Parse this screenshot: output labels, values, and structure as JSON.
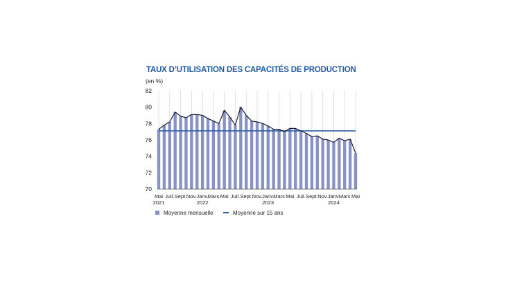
{
  "chart_data": {
    "type": "bar",
    "title": "TAUX D’UTILISATION DES CAPACITÉS DE PRODUCTION",
    "unit_label": "(en %)",
    "ylim": [
      70,
      82
    ],
    "yticks": [
      "70",
      "72",
      "74",
      "76",
      "78",
      "80",
      "82"
    ],
    "grid": "vertical",
    "x_tick_labels": [
      {
        "index": 0,
        "label": "Mai",
        "year": "2021"
      },
      {
        "index": 2,
        "label": "Juil."
      },
      {
        "index": 4,
        "label": "Sept."
      },
      {
        "index": 6,
        "label": "Nov."
      },
      {
        "index": 8,
        "label": "Janv.",
        "year": "2022"
      },
      {
        "index": 10,
        "label": "Mars"
      },
      {
        "index": 12,
        "label": "Mai"
      },
      {
        "index": 14,
        "label": "Juil."
      },
      {
        "index": 16,
        "label": "Sept."
      },
      {
        "index": 18,
        "label": "Nov."
      },
      {
        "index": 20,
        "label": "Janv.",
        "year": "2023"
      },
      {
        "index": 22,
        "label": "Mars"
      },
      {
        "index": 24,
        "label": "Mai"
      },
      {
        "index": 26,
        "label": "Juil."
      },
      {
        "index": 28,
        "label": "Sept."
      },
      {
        "index": 30,
        "label": "Nov."
      },
      {
        "index": 32,
        "label": "Janv.",
        "year": "2024"
      },
      {
        "index": 34,
        "label": "Mars"
      },
      {
        "index": 36,
        "label": "Mai"
      }
    ],
    "series": [
      {
        "name": "Moyenne mensuelle",
        "kind": "bar+line",
        "color": "#8891c8",
        "line_color": "#1a1a2e",
        "values": [
          77.3,
          77.8,
          78.2,
          79.4,
          78.9,
          78.7,
          79.1,
          79.1,
          79.0,
          78.6,
          78.3,
          78.0,
          79.6,
          78.8,
          77.8,
          80.0,
          79.0,
          78.3,
          78.2,
          78.0,
          77.7,
          77.3,
          77.3,
          77.0,
          77.4,
          77.4,
          77.1,
          76.8,
          76.4,
          76.5,
          76.1,
          76.0,
          75.7,
          76.2,
          75.9,
          76.1,
          74.4
        ]
      },
      {
        "name": "Moyenne sur 15 ans",
        "kind": "line",
        "color": "#2b5ea8",
        "values": [
          77.1
        ]
      }
    ]
  }
}
